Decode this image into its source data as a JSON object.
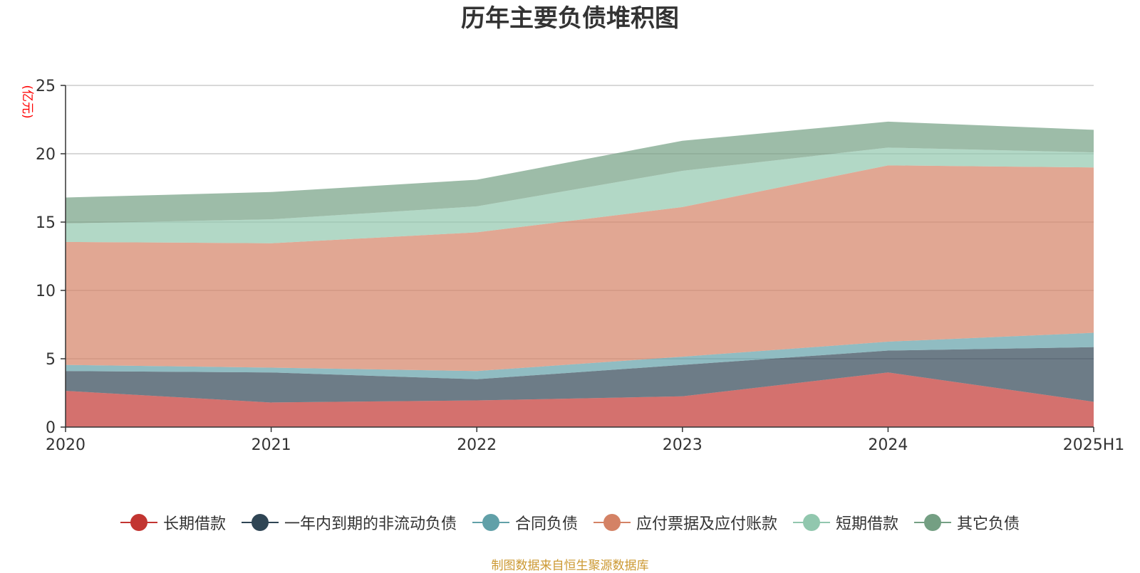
{
  "chart_data": {
    "type": "area",
    "title": "历年主要负债堆积图",
    "unit_label": "(亿元)",
    "xlabel": "",
    "ylabel": "",
    "stacked": true,
    "categories": [
      "2020",
      "2021",
      "2022",
      "2023",
      "2024",
      "2025H1"
    ],
    "y_ticks": [
      0,
      5,
      10,
      15,
      20,
      25
    ],
    "ylim": [
      0,
      25
    ],
    "grid": true,
    "legend_position": "bottom",
    "series": [
      {
        "name": "长期借款",
        "color": "#c23531",
        "values": [
          2.65,
          1.8,
          1.95,
          2.25,
          4.0,
          1.85
        ]
      },
      {
        "name": "一年内到期的非流动负债",
        "color": "#2f4554",
        "values": [
          1.45,
          2.2,
          1.55,
          2.3,
          1.6,
          4.0
        ]
      },
      {
        "name": "合同负债",
        "color": "#61a0a8",
        "values": [
          0.45,
          0.35,
          0.6,
          0.6,
          0.65,
          1.05
        ]
      },
      {
        "name": "应付票据及应付账款",
        "color": "#d48265",
        "values": [
          9.0,
          9.1,
          10.15,
          10.95,
          12.9,
          12.1
        ]
      },
      {
        "name": "短期借款",
        "color": "#91c7ae",
        "values": [
          1.35,
          1.75,
          1.9,
          2.65,
          1.3,
          1.1
        ]
      },
      {
        "name": "其它负债",
        "color": "#749f83",
        "values": [
          1.9,
          2.0,
          1.95,
          2.2,
          1.9,
          1.65
        ]
      }
    ]
  },
  "source_note": "制图数据来自恒生聚源数据库"
}
